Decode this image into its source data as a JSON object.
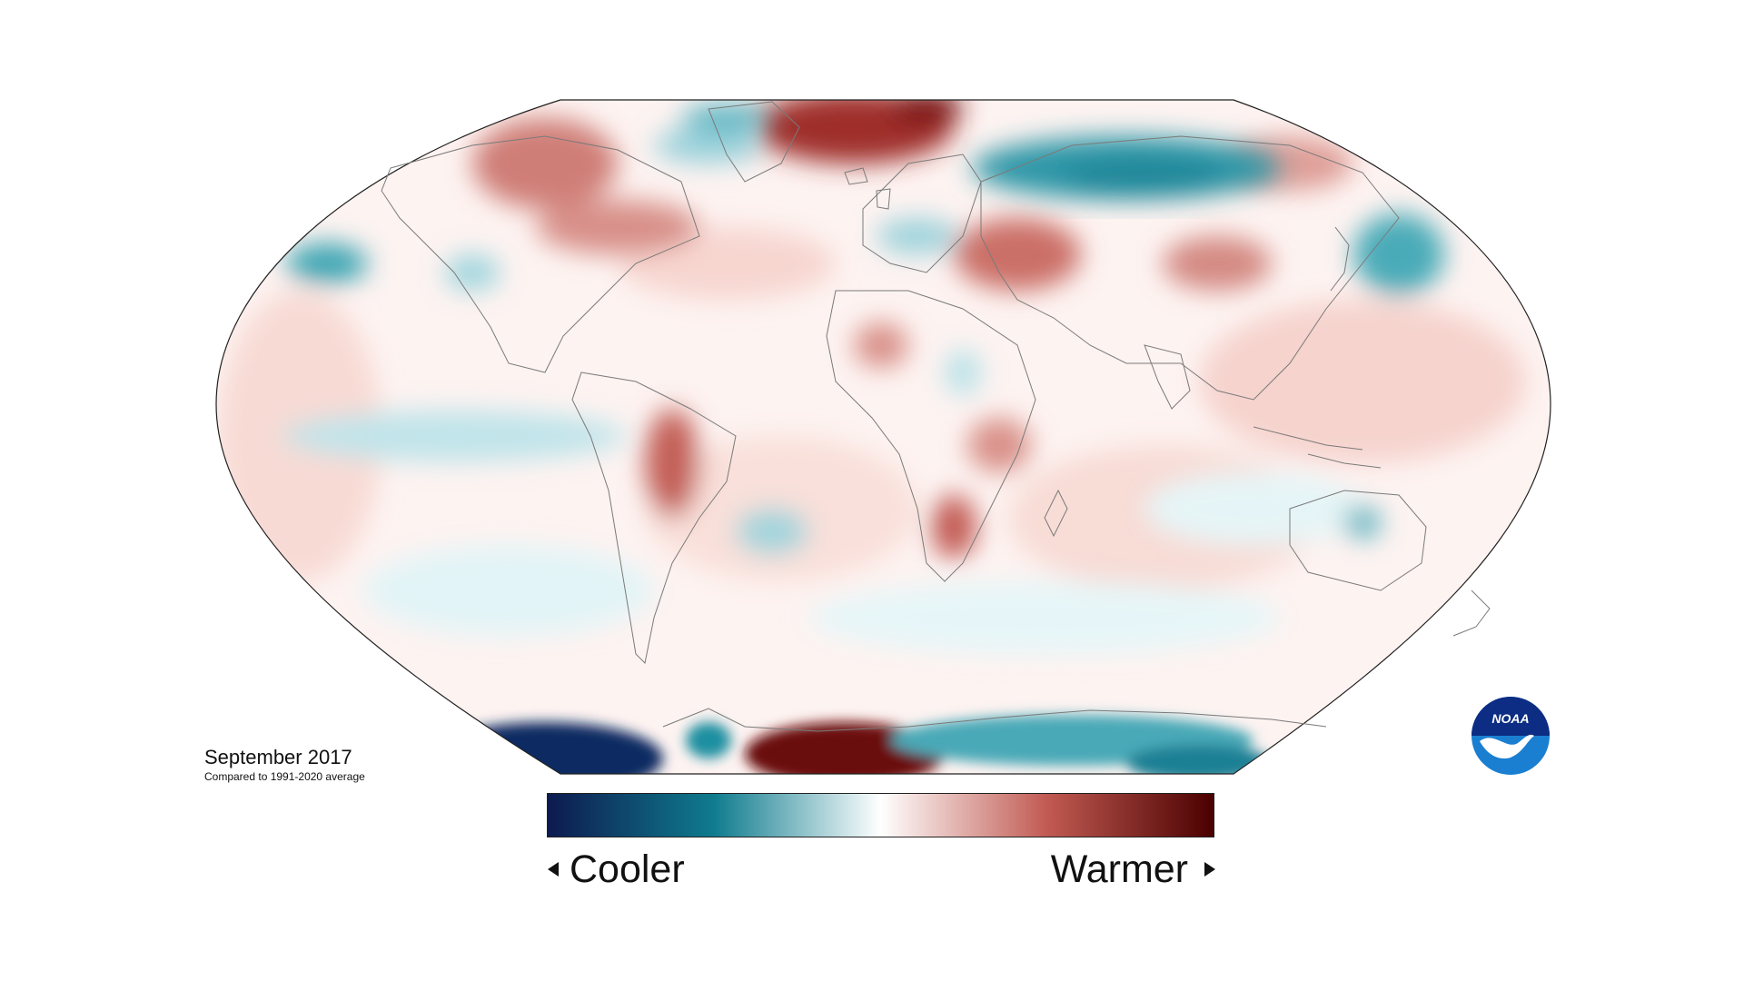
{
  "map": {
    "title": "September 2017",
    "subtitle": "Compared to 1991-2020 average"
  },
  "legend": {
    "cooler_label": "Cooler",
    "warmer_label": "Warmer",
    "colors": [
      "#0d1a4f",
      "#0f7c8e",
      "#ffffff",
      "#c15a52",
      "#4a0000"
    ]
  },
  "logo": {
    "text": "NOAA",
    "colors": [
      "#0c2d83",
      "#1a7fd1",
      "#ffffff"
    ]
  }
}
